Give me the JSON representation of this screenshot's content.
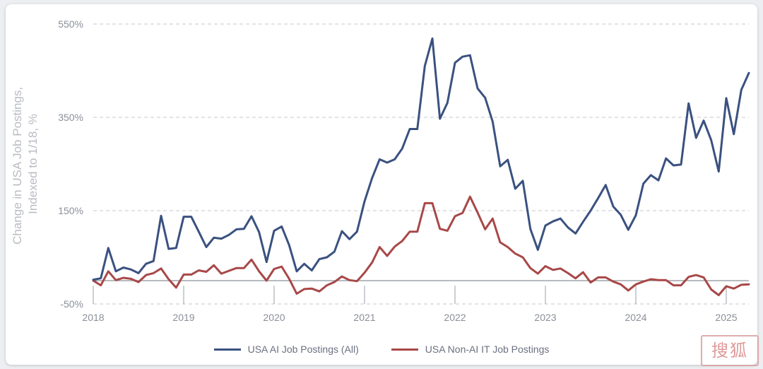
{
  "chart_data": {
    "type": "line",
    "ylabel": "Change in USA Job Postings,\nIndexed to 1/18, %",
    "ylabel_lines": [
      "Change in USA Job Postings,",
      "Indexed to 1/18, %"
    ],
    "ylim": [
      -50,
      550
    ],
    "yticks": [
      -50,
      150,
      350,
      550
    ],
    "ytick_labels": [
      "-50%",
      "150%",
      "350%",
      "550%"
    ],
    "xlim": [
      2018,
      2025.25
    ],
    "xticks": [
      2018,
      2019,
      2020,
      2021,
      2022,
      2023,
      2024,
      2025
    ],
    "xtick_labels": [
      "2018",
      "2019",
      "2020",
      "2021",
      "2022",
      "2023",
      "2024",
      "2025"
    ],
    "grid": "horizontal dashed",
    "legend": "bottom-center",
    "series": [
      {
        "name": "USA AI Job Postings (All)",
        "color": "#3a5180",
        "x": [
          2018.0,
          2018.0833,
          2018.1667,
          2018.25,
          2018.3333,
          2018.4167,
          2018.5,
          2018.5833,
          2018.6667,
          2018.75,
          2018.8333,
          2018.9167,
          2019.0,
          2019.0833,
          2019.1667,
          2019.25,
          2019.3333,
          2019.4167,
          2019.5,
          2019.5833,
          2019.6667,
          2019.75,
          2019.8333,
          2019.9167,
          2020.0,
          2020.0833,
          2020.1667,
          2020.25,
          2020.3333,
          2020.4167,
          2020.5,
          2020.5833,
          2020.6667,
          2020.75,
          2020.8333,
          2020.9167,
          2021.0,
          2021.0833,
          2021.1667,
          2021.25,
          2021.3333,
          2021.4167,
          2021.5,
          2021.5833,
          2021.6667,
          2021.75,
          2021.8333,
          2021.9167,
          2022.0,
          2022.0833,
          2022.1667,
          2022.25,
          2022.3333,
          2022.4167,
          2022.5,
          2022.5833,
          2022.6667,
          2022.75,
          2022.8333,
          2022.9167,
          2023.0,
          2023.0833,
          2023.1667,
          2023.25,
          2023.3333,
          2023.4167,
          2023.5,
          2023.5833,
          2023.6667,
          2023.75,
          2023.8333,
          2023.9167,
          2024.0,
          2024.0833,
          2024.1667,
          2024.25,
          2024.3333,
          2024.4167,
          2024.5,
          2024.5833,
          2024.6667,
          2024.75,
          2024.8333,
          2024.9167,
          2025.0,
          2025.0833,
          2025.1667,
          2025.25
        ],
        "y": [
          2,
          5,
          70,
          20,
          28,
          24,
          16,
          36,
          42,
          139,
          68,
          70,
          137,
          137,
          105,
          72,
          92,
          90,
          98,
          110,
          111,
          138,
          104,
          40,
          107,
          116,
          76,
          20,
          36,
          22,
          46,
          50,
          62,
          106,
          89,
          105,
          170,
          220,
          260,
          253,
          260,
          283,
          325,
          325,
          460,
          519,
          347,
          381,
          467,
          480,
          483,
          412,
          392,
          341,
          245,
          259,
          197,
          214,
          111,
          66,
          118,
          127,
          133,
          114,
          101,
          126,
          150,
          177,
          205,
          159,
          141,
          109,
          140,
          208,
          226,
          215,
          262,
          247,
          249,
          380,
          306,
          343,
          301,
          234,
          391,
          314,
          409,
          445
        ]
      },
      {
        "name": "USA Non-AI IT Job Postings",
        "color": "#a84848",
        "x": [
          2018.0,
          2018.0833,
          2018.1667,
          2018.25,
          2018.3333,
          2018.4167,
          2018.5,
          2018.5833,
          2018.6667,
          2018.75,
          2018.8333,
          2018.9167,
          2019.0,
          2019.0833,
          2019.1667,
          2019.25,
          2019.3333,
          2019.4167,
          2019.5,
          2019.5833,
          2019.6667,
          2019.75,
          2019.8333,
          2019.9167,
          2020.0,
          2020.0833,
          2020.1667,
          2020.25,
          2020.3333,
          2020.4167,
          2020.5,
          2020.5833,
          2020.6667,
          2020.75,
          2020.8333,
          2020.9167,
          2021.0,
          2021.0833,
          2021.1667,
          2021.25,
          2021.3333,
          2021.4167,
          2021.5,
          2021.5833,
          2021.6667,
          2021.75,
          2021.8333,
          2021.9167,
          2022.0,
          2022.0833,
          2022.1667,
          2022.25,
          2022.3333,
          2022.4167,
          2022.5,
          2022.5833,
          2022.6667,
          2022.75,
          2022.8333,
          2022.9167,
          2023.0,
          2023.0833,
          2023.1667,
          2023.25,
          2023.3333,
          2023.4167,
          2023.5,
          2023.5833,
          2023.6667,
          2023.75,
          2023.8333,
          2023.9167,
          2024.0,
          2024.0833,
          2024.1667,
          2024.25,
          2024.3333,
          2024.4167,
          2024.5,
          2024.5833,
          2024.6667,
          2024.75,
          2024.8333,
          2024.9167,
          2025.0,
          2025.0833,
          2025.1667,
          2025.25
        ],
        "y": [
          0,
          -10,
          20,
          1,
          6,
          4,
          -3,
          12,
          16,
          26,
          3,
          -15,
          13,
          13,
          22,
          19,
          33,
          15,
          21,
          27,
          27,
          45,
          20,
          0,
          25,
          30,
          4,
          -28,
          -18,
          -17,
          -23,
          -10,
          -3,
          9,
          1,
          -1,
          17,
          39,
          72,
          53,
          73,
          85,
          105,
          105,
          166,
          166,
          111,
          107,
          138,
          145,
          180,
          146,
          110,
          133,
          82,
          72,
          58,
          50,
          27,
          15,
          31,
          23,
          26,
          16,
          5,
          18,
          -4,
          7,
          7,
          -2,
          -8,
          -21,
          -8,
          -2,
          3,
          1,
          1,
          -10,
          -10,
          8,
          12,
          7,
          -19,
          -31,
          -12,
          -17,
          -9,
          -8
        ]
      }
    ]
  },
  "watermark": {
    "text": "搜狐",
    "color": "#d98888"
  }
}
